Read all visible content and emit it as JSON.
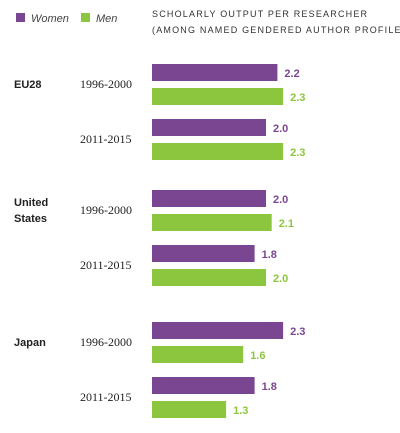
{
  "chart_data": {
    "type": "bar",
    "orientation": "horizontal",
    "title": "Scholarly output per researcher",
    "subtitle": "(among named gendered author profiles)",
    "legend": {
      "placement": "top-left",
      "entries": [
        {
          "name": "Women",
          "color": "#7a4691"
        },
        {
          "name": "Men",
          "color": "#8cc63f"
        }
      ]
    },
    "xlim": [
      0,
      2.5
    ],
    "grid": false,
    "groups": [
      {
        "region": [
          "EU28"
        ],
        "periods": [
          {
            "period": "1996-2000",
            "women": 2.2,
            "men": 2.3,
            "women_label": "2.2",
            "men_label": "2.3"
          },
          {
            "period": "2011-2015",
            "women": 2.0,
            "men": 2.3,
            "women_label": "2.0",
            "men_label": "2.3"
          }
        ]
      },
      {
        "region": [
          "United",
          "States"
        ],
        "periods": [
          {
            "period": "1996-2000",
            "women": 2.0,
            "men": 2.1,
            "women_label": "2.0",
            "men_label": "2.1"
          },
          {
            "period": "2011-2015",
            "women": 1.8,
            "men": 2.0,
            "women_label": "1.8",
            "men_label": "2.0"
          }
        ]
      },
      {
        "region": [
          "Japan"
        ],
        "periods": [
          {
            "period": "1996-2000",
            "women": 2.3,
            "men": 1.6,
            "women_label": "2.3",
            "men_label": "1.6"
          },
          {
            "period": "2011-2015",
            "women": 1.8,
            "men": 1.3,
            "women_label": "1.8",
            "men_label": "1.3"
          }
        ]
      }
    ]
  }
}
